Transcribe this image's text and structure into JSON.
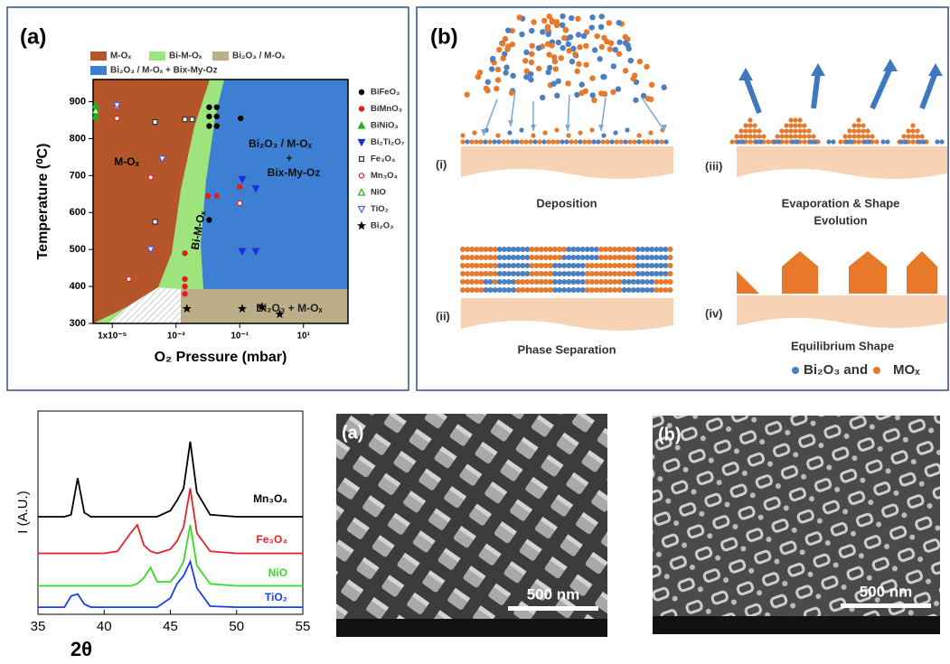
{
  "chart_data": [
    {
      "type": "scatter",
      "panel_label": "(a)",
      "xlabel": "O₂ Pressure (mbar)",
      "ylabel": "Temperature (⁰C)",
      "xscale": "log",
      "xlim": [
        2.5e-06,
        250
      ],
      "xticks": [
        {
          "value": 1e-05,
          "label": "1x10⁻⁵"
        },
        {
          "value": 0.001,
          "label": "10⁻³"
        },
        {
          "value": 0.1,
          "label": "10⁻¹"
        },
        {
          "value": 10,
          "label": "10¹"
        }
      ],
      "ylim": [
        300,
        960
      ],
      "yticks": [
        300,
        400,
        500,
        600,
        700,
        800,
        900
      ],
      "regions": [
        {
          "name": "M-Oₓ",
          "color": "#b4552a"
        },
        {
          "name": "Bi-M-Oₓ",
          "color": "#9ee47c"
        },
        {
          "name": "Bi₂O₃ / M-Oₓ",
          "color": "#bcae88"
        },
        {
          "name": "Bi₂O₃ / M-Oₓ + Bix-My-Oz",
          "color": "#3d7fd2"
        }
      ],
      "region_labels": [
        "M-Oₓ",
        "Bi-M-Oₓ",
        "Bi₂O₃ / M-Oₓ",
        "+",
        "Bix-My-Oz",
        "Bi₂O₃ + M-Oₓ"
      ],
      "series": [
        {
          "name": "BiFeO₃",
          "color": "#000000",
          "marker": "circle",
          "filled": true,
          "x": [
            0.011,
            0.019,
            0.011,
            0.019,
            0.011,
            0.019,
            0.107,
            0.011
          ],
          "values": [
            885,
            885,
            860,
            860,
            834,
            834,
            855,
            580
          ]
        },
        {
          "name": "BiMnO₃",
          "color": "#e02020",
          "marker": "circle",
          "filled": true,
          "x": [
            0.0019,
            0.0019,
            0.0019,
            0.0019,
            0.01,
            0.019,
            0.1
          ],
          "values": [
            490,
            420,
            400,
            380,
            645,
            645,
            670
          ]
        },
        {
          "name": "BiNiO₃",
          "color": "#22b422",
          "marker": "triangle",
          "filled": true,
          "x": [
            3e-06,
            3e-06
          ],
          "values": [
            890,
            860
          ]
        },
        {
          "name": "Bi₂Ti₂O₇",
          "color": "#1a2ee0",
          "marker": "triangle-down",
          "filled": true,
          "x": [
            0.12,
            0.32,
            0.12,
            0.32
          ],
          "values": [
            690,
            665,
            495,
            495
          ]
        },
        {
          "name": "Fe₃O₄",
          "color": "#333333",
          "marker": "square",
          "filled": false,
          "x": [
            0.00022,
            0.0019,
            0.0032,
            0.00022
          ],
          "values": [
            845,
            852,
            852,
            575
          ]
        },
        {
          "name": "Mn₃O₄",
          "color": "#e02020",
          "marker": "circle",
          "filled": false,
          "x": [
            1.4e-05,
            1.4e-05,
            0.00016,
            3.3e-05,
            0.1
          ],
          "values": [
            885,
            855,
            695,
            420,
            625
          ]
        },
        {
          "name": "NiO",
          "color": "#22b422",
          "marker": "triangle",
          "filled": false,
          "x": [
            3e-06
          ],
          "values": [
            875
          ]
        },
        {
          "name": "TiO₂",
          "color": "#4a5ee8",
          "marker": "triangle-down",
          "filled": false,
          "x": [
            1.4e-05,
            0.00037,
            0.00016
          ],
          "values": [
            890,
            745,
            500
          ]
        },
        {
          "name": "Bi₂O₃",
          "color": "#000000",
          "marker": "star",
          "filled": true,
          "x": [
            0.0022,
            0.12,
            0.5,
            1.8
          ],
          "values": [
            340,
            340,
            345,
            325
          ]
        }
      ]
    },
    {
      "type": "line",
      "xlabel": "2θ",
      "ylabel": "I (A.U.)",
      "xlim": [
        35,
        55
      ],
      "xticks": [
        35,
        40,
        45,
        50,
        55
      ],
      "ylim": [
        0,
        10
      ],
      "x": [
        35,
        36,
        37,
        37.5,
        38,
        38.5,
        39,
        40,
        41,
        42,
        42.5,
        43,
        43.5,
        44,
        45,
        45.5,
        46,
        46.5,
        47,
        48,
        50,
        52,
        55
      ],
      "series": [
        {
          "name": "Mn₃O₄",
          "color": "#000000",
          "values": [
            4.8,
            4.8,
            4.8,
            4.9,
            6.7,
            5.0,
            4.8,
            4.8,
            4.8,
            4.8,
            4.8,
            4.8,
            4.8,
            4.8,
            5.1,
            5.6,
            6.2,
            8.5,
            6.0,
            4.9,
            4.8,
            4.8,
            4.8
          ]
        },
        {
          "name": "Fe₃O₄",
          "color": "#e8222a",
          "values": [
            3.0,
            3.0,
            3.0,
            3.0,
            3.0,
            3.0,
            3.0,
            3.0,
            3.1,
            4.0,
            4.4,
            3.4,
            3.1,
            3.0,
            3.2,
            3.6,
            4.3,
            6.2,
            4.0,
            3.1,
            3.0,
            3.0,
            3.0
          ]
        },
        {
          "name": "NiO",
          "color": "#33dd22",
          "values": [
            1.4,
            1.4,
            1.4,
            1.4,
            1.4,
            1.4,
            1.4,
            1.4,
            1.4,
            1.4,
            1.5,
            1.8,
            2.3,
            1.6,
            1.6,
            2.0,
            2.6,
            4.4,
            2.4,
            1.5,
            1.4,
            1.4,
            1.4
          ]
        },
        {
          "name": "TiO₂",
          "color": "#1a3ef0",
          "values": [
            0.35,
            0.35,
            0.35,
            0.9,
            1.0,
            0.5,
            0.35,
            0.35,
            0.35,
            0.35,
            0.35,
            0.35,
            0.35,
            0.35,
            0.8,
            1.5,
            1.9,
            2.6,
            1.3,
            0.4,
            0.35,
            0.35,
            0.35
          ]
        }
      ]
    }
  ],
  "schematic": {
    "panel_label": "(b)",
    "steps": [
      {
        "label": "(i)",
        "caption": [
          "Deposition"
        ]
      },
      {
        "label": "(ii)",
        "caption": [
          "Phase Separation"
        ]
      },
      {
        "label": "(iii)",
        "caption": [
          "Evaporation & Shape",
          "Evolution"
        ]
      },
      {
        "label": "(iv)",
        "caption": [
          "Equilibrium Shape"
        ]
      }
    ],
    "legend": [
      "Bi₂O₃ and",
      "MOₓ"
    ]
  },
  "micrographs": [
    {
      "label": "(a)",
      "scale_bar": "500 nm"
    },
    {
      "label": "(b)",
      "scale_bar": "500 nm"
    }
  ]
}
